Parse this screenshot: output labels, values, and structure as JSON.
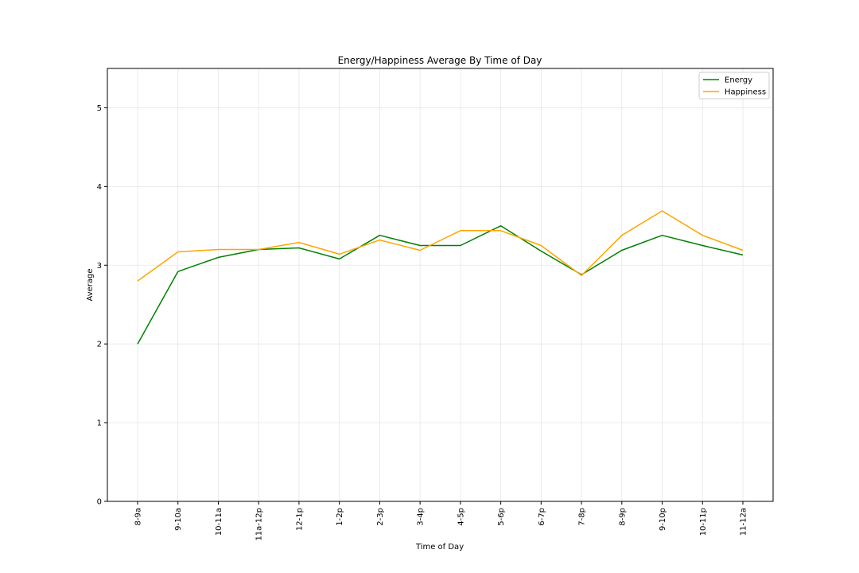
{
  "chart_data": {
    "type": "line",
    "title": "Energy/Happiness Average By Time of Day",
    "xlabel": "Time of Day",
    "ylabel": "Average",
    "categories": [
      "8-9a",
      "9-10a",
      "10-11a",
      "11a-12p",
      "12-1p",
      "1-2p",
      "2-3p",
      "3-4p",
      "4-5p",
      "5-6p",
      "6-7p",
      "7-8p",
      "8-9p",
      "9-10p",
      "10-11p",
      "11-12a"
    ],
    "ylim": [
      0,
      5.5
    ],
    "yticks": [
      0,
      1,
      2,
      3,
      4,
      5
    ],
    "grid": true,
    "legend_position": "top-right",
    "series": [
      {
        "name": "Energy",
        "color": "#008000",
        "values": [
          2.0,
          2.92,
          3.1,
          3.2,
          3.22,
          3.08,
          3.38,
          3.25,
          3.25,
          3.5,
          3.18,
          2.88,
          3.19,
          3.38,
          3.25,
          3.13
        ]
      },
      {
        "name": "Happiness",
        "color": "#FFA500",
        "values": [
          2.8,
          3.17,
          3.2,
          3.2,
          3.29,
          3.14,
          3.32,
          3.19,
          3.44,
          3.44,
          3.25,
          2.87,
          3.38,
          3.69,
          3.38,
          3.19
        ]
      }
    ]
  }
}
